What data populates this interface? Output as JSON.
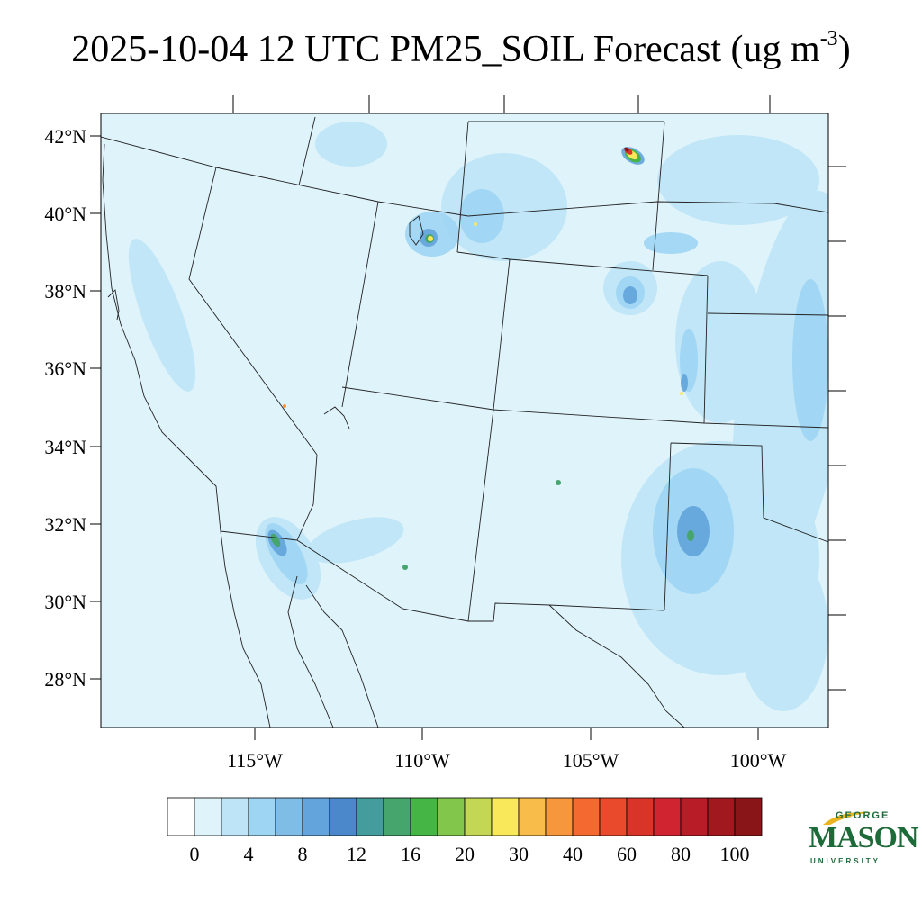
{
  "title": {
    "main": "2025-10-04 12 UTC PM25_SOIL Forecast (ug m",
    "superscript": "-3",
    "close": ")"
  },
  "map": {
    "lat_labels": [
      "42°N",
      "40°N",
      "38°N",
      "36°N",
      "34°N",
      "32°N",
      "30°N",
      "28°N"
    ],
    "lon_labels": [
      "115°W",
      "110°W",
      "105°W",
      "100°W"
    ],
    "background_color": "#dff3fb",
    "hotspots": [
      {
        "name": "wyoming-hotspot",
        "peak": 100
      },
      {
        "name": "utah-hotspot",
        "peak": 30
      },
      {
        "name": "texas-hotspot",
        "peak": 16
      },
      {
        "name": "arizona-hotspot",
        "peak": 16
      }
    ]
  },
  "colorbar": {
    "colors": [
      "#ffffff",
      "#dff3fb",
      "#bde5f7",
      "#9dd5f3",
      "#80bde6",
      "#62a4db",
      "#4a88cb",
      "#459c9d",
      "#45a56c",
      "#45b646",
      "#83c64c",
      "#c3d754",
      "#f8e85a",
      "#f8bc4a",
      "#f6963d",
      "#f36930",
      "#e84a2b",
      "#d93428",
      "#d12431",
      "#b81c26",
      "#a1191e",
      "#8a1519"
    ],
    "labels": [
      "0",
      "4",
      "8",
      "12",
      "16",
      "20",
      "30",
      "40",
      "60",
      "80",
      "100"
    ]
  },
  "logo": {
    "top": "GEORGE",
    "main": "MASON",
    "bottom": "UNIVERSITY",
    "color": "#1e6b3a",
    "accent": "#e8b420"
  }
}
